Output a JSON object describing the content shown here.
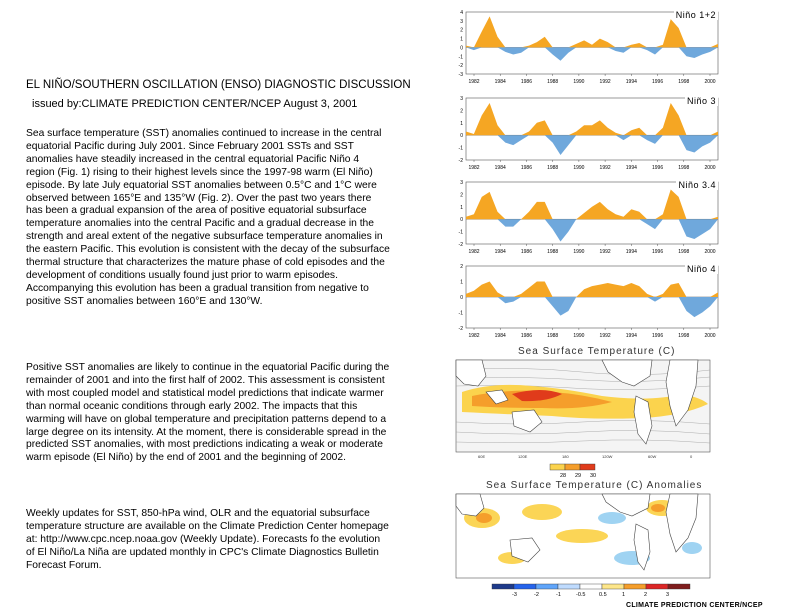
{
  "document": {
    "title": "EL NIÑO/SOUTHERN OSCILLATION (ENSO) DIAGNOSTIC DISCUSSION",
    "issued": "issued by:CLIMATE PREDICTION CENTER/NCEP  August 3, 2001",
    "paragraphs": [
      "Sea surface temperature (SST) anomalies continued to increase in the central equatorial Pacific during July 2001. Since February 2001 SSTs and SST anomalies have steadily increased in the central equatorial Pacific Niño 4 region (Fig. 1) rising to their highest levels since the 1997-98 warm (El Niño) episode. By late July equatorial SST anomalies between 0.5°C and 1°C were observed between 165°E and 135°W (Fig. 2).  Over the past two years there has been a gradual expansion of the area of positive equatorial subsurface temperature anomalies into the central Pacific and a gradual decrease in the strength and areal extent of the negative subsurface temperature anomalies in the eastern Pacific. This evolution is consistent with the decay of the subsurface thermal structure that characterizes the mature phase of cold episodes and the development of conditions usually found just prior to warm episodes. Accompanying this evolution has been a gradual transition from negative to positive SST anomalies between 160°E and 130°W.",
      "Positive SST anomalies are likely to continue in the equatorial Pacific during the remainder of 2001 and into the first half of 2002. This assessment is consistent with most coupled model and statistical model predictions that indicate warmer than normal oceanic conditions through early 2002. The impacts that this warming will have on global temperature and precipitation patterns depend to a large degree on its intensity. At the moment, there is considerable spread in the predicted SST anomalies, with most predictions indicating a weak or moderate warm episode (El Niño) by the end of 2001 and the beginning of 2002.",
      "Weekly updates for SST, 850-hPa wind, OLR and the equatorial subsurface temperature structure are available on the Climate Prediction Center homepage at: http://www.cpc.ncep.noaa.gov (Weekly Update).  Forecasts fo the evolution of El Niño/La Niña are updated monthly in CPC's Climate Diagnostics Bulletin Forecast Forum."
    ]
  },
  "figures": {
    "warm_color": "#f5a623",
    "cold_color": "#6fa8dc",
    "nino_panels": [
      {
        "label": "Niño  1+2",
        "yticks": [
          "4",
          "3",
          "2",
          "1",
          "0",
          "-1",
          "-2",
          "-3"
        ]
      },
      {
        "label": "Niño  3",
        "yticks": [
          "3",
          "2",
          "1",
          "0",
          "-1",
          "-2"
        ]
      },
      {
        "label": "Niño  3.4",
        "yticks": [
          "3",
          "2",
          "1",
          "0",
          "-1",
          "-2"
        ]
      },
      {
        "label": "Niño  4",
        "yticks": [
          "2",
          "1",
          "0",
          "-1",
          "-2"
        ]
      }
    ],
    "years": [
      "1982",
      "1984",
      "1986",
      "1988",
      "1990",
      "1992",
      "1994",
      "1996",
      "1998",
      "2000"
    ],
    "sst_map": {
      "title": "Sea Surface Temperature (C)",
      "legend": [
        "28",
        "29",
        "30"
      ]
    },
    "anom_map": {
      "title": "Sea Surface Temperature (C) Anomalies",
      "legend": [
        "-3",
        "-2",
        "-1",
        "-0.5",
        "0.5",
        "1",
        "2",
        "3"
      ]
    },
    "credit": "CLIMATE PREDICTION CENTER/NCEP"
  }
}
